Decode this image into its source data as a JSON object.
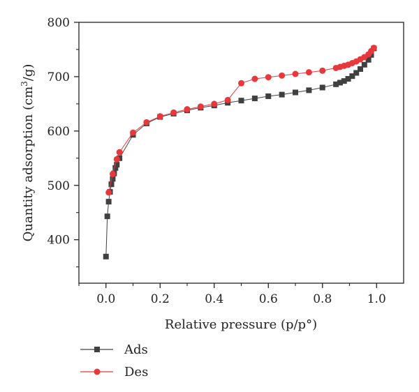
{
  "chart_data": {
    "type": "line",
    "xlabel": "Relative pressure (p/p°)",
    "ylabel_main": "Quantity adsorption (cm",
    "ylabel_sup": "3",
    "ylabel_tail": "/g)",
    "xlim": [
      -0.1,
      1.1
    ],
    "ylim": [
      320,
      800
    ],
    "x_ticks": [
      0.0,
      0.2,
      0.4,
      0.6,
      0.8,
      1.0
    ],
    "x_tick_labels": [
      "0.0",
      "0.2",
      "0.4",
      "0.6",
      "0.8",
      "1.0"
    ],
    "y_ticks": [
      400,
      500,
      600,
      700,
      800
    ],
    "y_tick_labels": [
      "400",
      "500",
      "600",
      "700",
      "800"
    ],
    "grid": false,
    "legend": "bottom-left",
    "series": [
      {
        "name": "Ads",
        "color": "#404040",
        "marker": "square",
        "x": [
          0.0,
          0.005,
          0.01,
          0.015,
          0.02,
          0.025,
          0.03,
          0.035,
          0.04,
          0.05,
          0.1,
          0.15,
          0.2,
          0.25,
          0.3,
          0.35,
          0.4,
          0.45,
          0.5,
          0.55,
          0.6,
          0.65,
          0.7,
          0.75,
          0.8,
          0.85,
          0.865,
          0.88,
          0.895,
          0.91,
          0.925,
          0.94,
          0.955,
          0.97,
          0.98,
          0.99
        ],
        "y": [
          369,
          443,
          470,
          488,
          502,
          512,
          522,
          532,
          538,
          550,
          593,
          614,
          626,
          632,
          638,
          643,
          647,
          652,
          656,
          660,
          664,
          667,
          671,
          675,
          680,
          686,
          689,
          692,
          696,
          701,
          707,
          714,
          722,
          731,
          740,
          752
        ]
      },
      {
        "name": "Des",
        "color": "#e8383b",
        "marker": "circle",
        "x": [
          0.01,
          0.025,
          0.04,
          0.05,
          0.1,
          0.15,
          0.2,
          0.25,
          0.3,
          0.35,
          0.4,
          0.45,
          0.5,
          0.55,
          0.6,
          0.65,
          0.7,
          0.75,
          0.8,
          0.85,
          0.865,
          0.88,
          0.895,
          0.91,
          0.925,
          0.94,
          0.955,
          0.97,
          0.98,
          0.99
        ],
        "y": [
          487,
          521,
          548,
          561,
          597,
          616,
          627,
          634,
          640,
          645,
          650,
          657,
          688,
          696,
          699,
          702,
          705,
          708,
          711,
          716,
          718,
          720,
          722,
          725,
          728,
          732,
          736,
          741,
          747,
          753
        ]
      }
    ]
  }
}
